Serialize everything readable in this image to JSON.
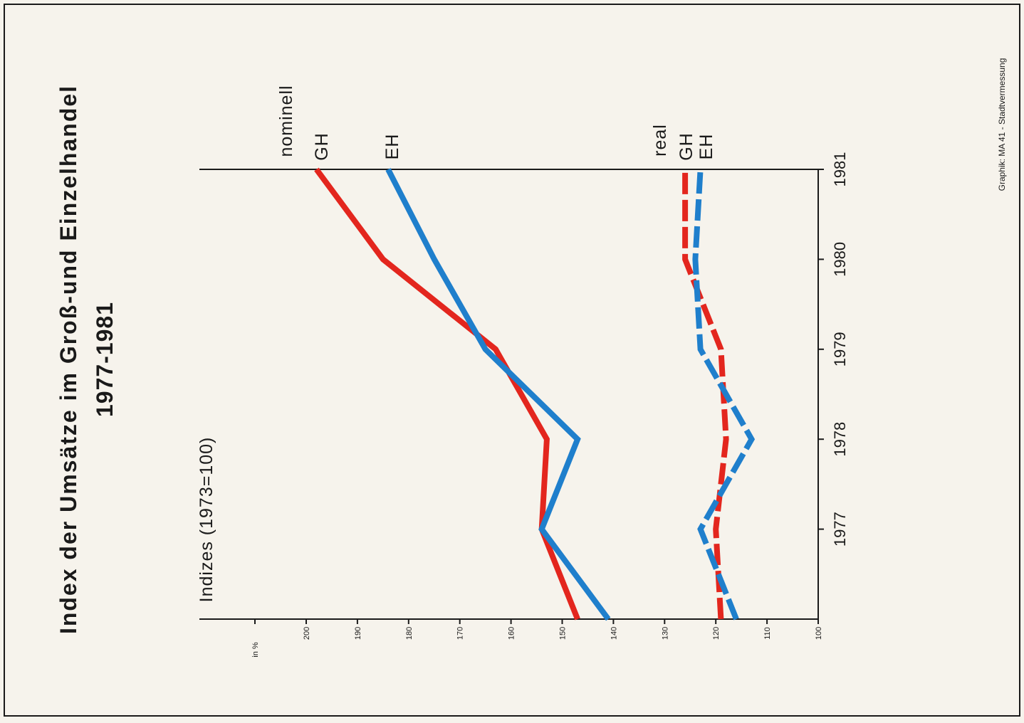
{
  "title": "Index der Umsätze im Groß-und Einzelhandel",
  "subtitle": "1977-1981",
  "credit": "Graphik: MA 41 - Stadtvermessung",
  "axis_unit": "in %",
  "axis_label": "Indizes (1973=100)",
  "group_labels": {
    "nominal": "nominell",
    "real": "real"
  },
  "colors": {
    "GH": "#e3261e",
    "EH": "#1f7fcc",
    "axis": "#1a1a1a",
    "background": "#f6f3ec"
  },
  "chart_data": {
    "type": "line",
    "title": "Index der Umsätze im Groß-und Einzelhandel 1977-1981",
    "ylabel": "Indizes (1973=100)",
    "yunit": "in %",
    "ylim": [
      100,
      200
    ],
    "yticks": [
      200,
      190,
      180,
      170,
      160,
      150,
      140,
      130,
      120,
      110,
      100
    ],
    "xticks": [
      "1977",
      "1978",
      "1979",
      "1980",
      "1981"
    ],
    "xlim": [
      1976,
      1981
    ],
    "orientation": "rotated 90° counter-clockwise",
    "grid": false,
    "series": [
      {
        "name": "GH",
        "group": "nominell",
        "style": "solid",
        "color": "#e3261e",
        "x": [
          1976,
          1977,
          1978,
          1979,
          1980,
          1981
        ],
        "values": [
          147,
          154,
          153,
          163,
          185,
          198
        ]
      },
      {
        "name": "EH",
        "group": "nominell",
        "style": "solid",
        "color": "#1f7fcc",
        "x": [
          1976,
          1977,
          1978,
          1979,
          1980,
          1981
        ],
        "values": [
          141,
          154,
          147,
          165,
          175,
          184
        ]
      },
      {
        "name": "GH",
        "group": "real",
        "style": "dashed",
        "color": "#e3261e",
        "x": [
          1976,
          1977,
          1978,
          1979,
          1980,
          1981
        ],
        "values": [
          119,
          120,
          118,
          119,
          126,
          126
        ]
      },
      {
        "name": "EH",
        "group": "real",
        "style": "dashed",
        "color": "#1f7fcc",
        "x": [
          1976,
          1977,
          1978,
          1979,
          1980,
          1981
        ],
        "values": [
          116,
          123,
          113,
          123,
          124,
          123
        ]
      }
    ]
  }
}
